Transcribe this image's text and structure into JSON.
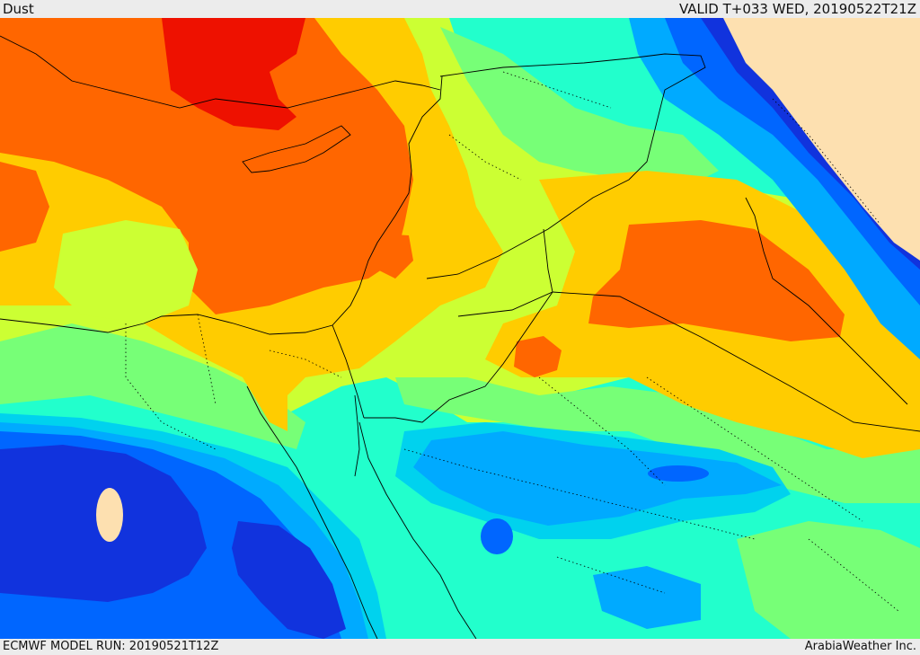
{
  "header": {
    "field_name": "Dust",
    "valid_time": "VALID T+033 WED, 20190522T21Z"
  },
  "footer": {
    "model_run": "ECMWF MODEL RUN: 20190521T12Z",
    "credit": "ArabiaWeather Inc."
  },
  "map": {
    "region": "Eastern Mediterranean, Egypt, Levant, Arabian Peninsula",
    "colormap": [
      "#1133dd",
      "#0066ff",
      "#00aaff",
      "#00d2ee",
      "#22ffcc",
      "#77ff77",
      "#ccff33",
      "#ffcc00",
      "#ff6600",
      "#ee1100"
    ],
    "no_data_color": "#fde0b0",
    "features": [
      "coastlines",
      "country-borders",
      "province-borders"
    ]
  }
}
